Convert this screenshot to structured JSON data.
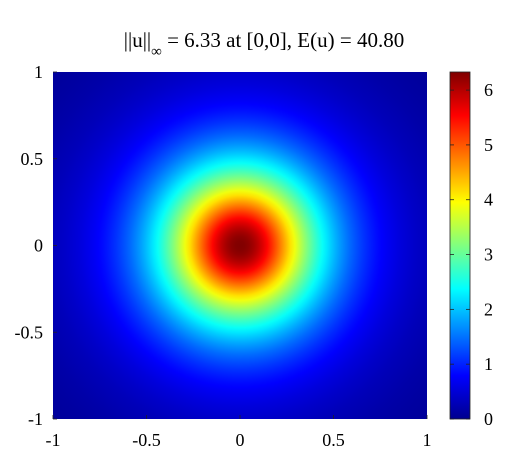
{
  "chart_data": {
    "type": "heatmap",
    "title": {
      "norm_prefix": "||u||",
      "norm_subscript": "∞",
      "rest": " = 6.33 at [0,0], E(u) = 40.80"
    },
    "xlabel": "",
    "ylabel": "",
    "xlim": [
      -1,
      1
    ],
    "ylim": [
      -1,
      1
    ],
    "x_ticks": [
      -1,
      -0.5,
      0,
      0.5,
      1
    ],
    "x_tick_labels": [
      "-1",
      "-0.5",
      "0",
      "0.5",
      "1"
    ],
    "y_ticks": [
      1,
      0.5,
      0,
      -0.5,
      -1
    ],
    "y_tick_labels": [
      "1",
      "0.5",
      "0",
      "-0.5",
      "-1"
    ],
    "peak": {
      "x": 0,
      "y": 0,
      "value": 6.33
    },
    "energy": 40.8,
    "field_falloff_radius": 0.24,
    "grid": false,
    "colormap": "jet",
    "colormap_stops": [
      "#00008f",
      "#0000ff",
      "#00ffff",
      "#ffff00",
      "#ff0000",
      "#800000"
    ],
    "colorbar": {
      "position": "right",
      "clim": [
        0,
        6.33
      ],
      "ticks": [
        0,
        1,
        2,
        3,
        4,
        5,
        6
      ],
      "tick_labels": [
        "0",
        "1",
        "2",
        "3",
        "4",
        "5",
        "6"
      ]
    }
  }
}
